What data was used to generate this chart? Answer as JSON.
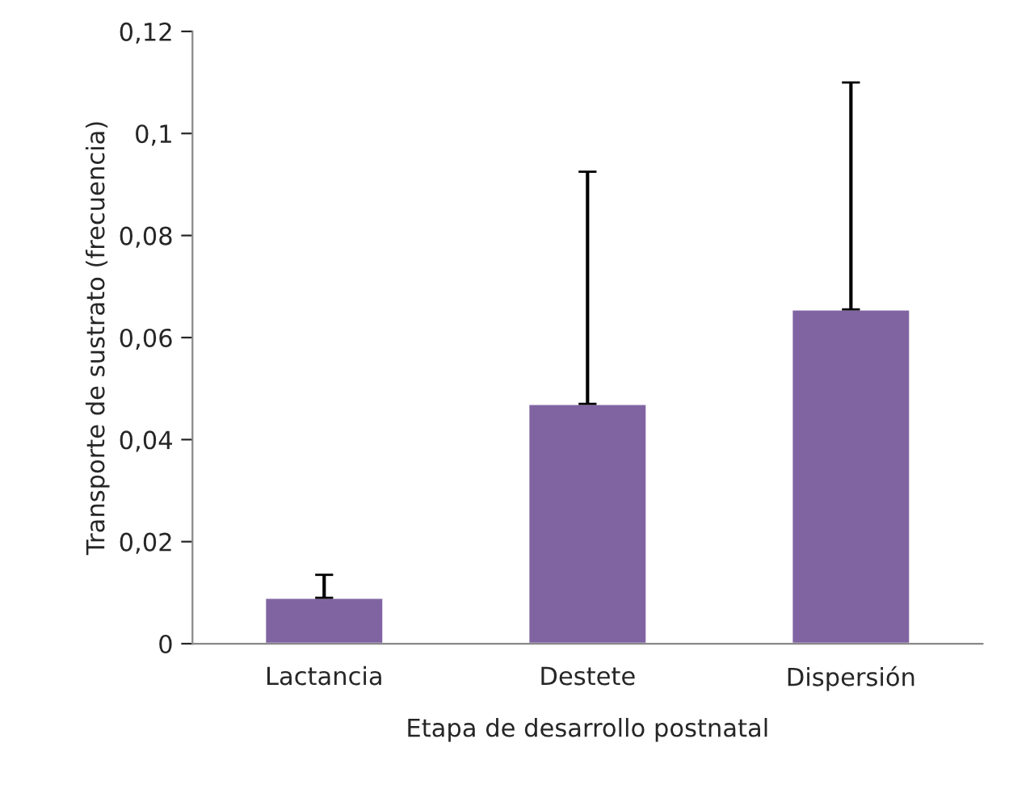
{
  "chart_data": {
    "type": "bar",
    "xlabel": "Etapa de desarrollo postnatal",
    "ylabel": "Transporte de sustrato (frecuencia)",
    "categories": [
      "Lactancia",
      "Destete",
      "Dispersión"
    ],
    "values": [
      0.009,
      0.047,
      0.0655
    ],
    "errors": [
      [
        0.009,
        0.0135
      ],
      [
        0.047,
        0.0925
      ],
      [
        0.0655,
        0.11
      ]
    ],
    "color": "#8064a2",
    "ylim": [
      0,
      0.12
    ],
    "yticks": [
      0,
      {
        "value": 0.02,
        "label": "0,02"
      },
      {
        "value": 0.04,
        "label": "0,04"
      },
      {
        "value": 0.06,
        "label": "0,06"
      },
      {
        "value": 0.08,
        "label": "0,08"
      },
      {
        "value": 0.1,
        "label": "0,1"
      },
      {
        "value": 0.12,
        "label": "0,12"
      }
    ],
    "grid": false,
    "legend": false
  }
}
